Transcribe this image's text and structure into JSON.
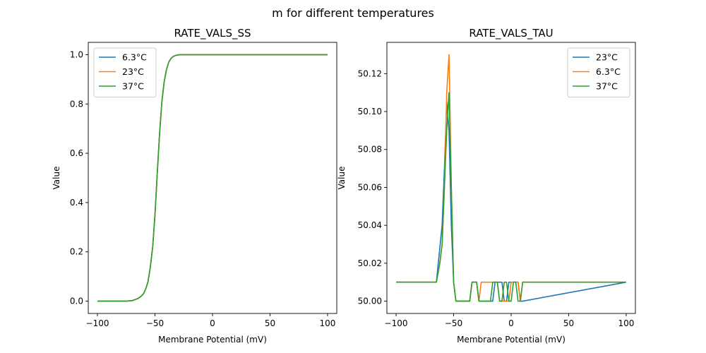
{
  "figure": {
    "title": "m for different temperatures"
  },
  "colors": {
    "blue": "#1f77b4",
    "orange": "#ff7f0e",
    "green": "#2ca02c"
  },
  "chart_data": [
    {
      "type": "line",
      "title": "RATE_VALS_SS",
      "xlabel": "Membrane Potential (mV)",
      "ylabel": "Value",
      "xlim": [
        -108,
        108
      ],
      "ylim": [
        -0.05,
        1.05
      ],
      "xticks": [
        -100,
        -50,
        0,
        50,
        100
      ],
      "yticks": [
        0.0,
        0.2,
        0.4,
        0.6,
        0.8,
        1.0
      ],
      "xtick_labels": [
        "−100",
        "−50",
        "0",
        "50",
        "100"
      ],
      "ytick_labels": [
        "0.0",
        "0.2",
        "0.4",
        "0.6",
        "0.8",
        "1.0"
      ],
      "grid": false,
      "legend_position": "upper-left",
      "x": [
        -100,
        -95,
        -90,
        -85,
        -80,
        -75,
        -70,
        -65,
        -62,
        -60,
        -58,
        -56,
        -54,
        -52,
        -50,
        -48,
        -46,
        -44,
        -42,
        -40,
        -38,
        -36,
        -34,
        -32,
        -30,
        -28,
        -25,
        -20,
        -15,
        -10,
        -5,
        0,
        10,
        20,
        30,
        40,
        50,
        60,
        70,
        80,
        90,
        100
      ],
      "series": [
        {
          "name": "6.3°C",
          "color": "#1f77b4",
          "values": [
            0,
            0,
            0,
            0,
            0,
            0,
            0.002,
            0.01,
            0.02,
            0.03,
            0.05,
            0.08,
            0.14,
            0.22,
            0.35,
            0.52,
            0.68,
            0.81,
            0.89,
            0.94,
            0.97,
            0.985,
            0.993,
            0.997,
            0.999,
            1,
            1,
            1,
            1,
            1,
            1,
            1,
            1,
            1,
            1,
            1,
            1,
            1,
            1,
            1,
            1,
            1
          ]
        },
        {
          "name": "23°C",
          "color": "#ff7f0e",
          "values": [
            0,
            0,
            0,
            0,
            0,
            0,
            0.002,
            0.01,
            0.02,
            0.03,
            0.05,
            0.08,
            0.14,
            0.22,
            0.35,
            0.52,
            0.68,
            0.81,
            0.89,
            0.94,
            0.97,
            0.985,
            0.993,
            0.997,
            0.999,
            1,
            1,
            1,
            1,
            1,
            1,
            1,
            1,
            1,
            1,
            1,
            1,
            1,
            1,
            1,
            1,
            1
          ]
        },
        {
          "name": "37°C",
          "color": "#2ca02c",
          "values": [
            0,
            0,
            0,
            0,
            0,
            0,
            0.002,
            0.01,
            0.02,
            0.03,
            0.05,
            0.08,
            0.14,
            0.22,
            0.35,
            0.52,
            0.68,
            0.81,
            0.89,
            0.94,
            0.97,
            0.985,
            0.993,
            0.997,
            0.999,
            1,
            1,
            1,
            1,
            1,
            1,
            1,
            1,
            1,
            1,
            1,
            1,
            1,
            1,
            1,
            1,
            1
          ]
        }
      ]
    },
    {
      "type": "line",
      "title": "RATE_VALS_TAU",
      "xlabel": "Membrane Potential (mV)",
      "ylabel": "Value",
      "xlim": [
        -108,
        108
      ],
      "ylim": [
        49.9935,
        50.1365
      ],
      "xticks": [
        -100,
        -50,
        0,
        50,
        100
      ],
      "yticks": [
        50.0,
        50.02,
        50.04,
        50.06,
        50.08,
        50.1,
        50.12
      ],
      "xtick_labels": [
        "−100",
        "−50",
        "0",
        "50",
        "100"
      ],
      "ytick_labels": [
        "50.00",
        "50.02",
        "50.04",
        "50.06",
        "50.08",
        "50.10",
        "50.12"
      ],
      "grid": false,
      "legend_position": "upper-right",
      "series": [
        {
          "name": "23°C",
          "color": "#1f77b4",
          "x": [
            -100,
            -65,
            -60,
            -58,
            -56,
            -54,
            -52,
            -50,
            -48,
            -40,
            -36,
            -34,
            -32,
            -30,
            -28,
            -26,
            -22,
            -20,
            -16,
            -14,
            -12,
            -10,
            -8,
            -6,
            -4,
            -2,
            0,
            2,
            4,
            6,
            8,
            10,
            100
          ],
          "values": [
            50.01,
            50.01,
            50.04,
            50.07,
            50.105,
            50.09,
            50.04,
            50.01,
            50.0,
            50.0,
            50.0,
            50.01,
            50.01,
            50.01,
            50.0,
            50.0,
            50.0,
            50.0,
            50.0,
            50.01,
            50.01,
            50.01,
            50.01,
            50.0,
            50.0,
            50.01,
            50.01,
            50.01,
            50.01,
            50.01,
            50.0,
            50.0,
            50.01
          ]
        },
        {
          "name": "6.3°C",
          "color": "#ff7f0e",
          "x": [
            -100,
            -65,
            -62,
            -60,
            -58,
            -56,
            -54,
            -52,
            -50,
            -48,
            -40,
            -36,
            -34,
            -32,
            -30,
            -28,
            -26,
            -20,
            -16,
            -14,
            -12,
            -10,
            -8,
            -6,
            -4,
            -2,
            0,
            2,
            4,
            6,
            8,
            10,
            100
          ],
          "values": [
            50.01,
            50.01,
            50.02,
            50.03,
            50.06,
            50.11,
            50.13,
            50.06,
            50.01,
            50.0,
            50.0,
            50.0,
            50.01,
            50.01,
            50.01,
            50.0,
            50.01,
            50.01,
            50.01,
            50.01,
            50.01,
            50.0,
            50.0,
            50.0,
            50.0,
            50.0,
            50.01,
            50.01,
            50.01,
            50.01,
            50.0,
            50.01,
            50.01
          ]
        },
        {
          "name": "37°C",
          "color": "#2ca02c",
          "x": [
            -100,
            -65,
            -62,
            -60,
            -58,
            -56,
            -54,
            -52,
            -50,
            -48,
            -40,
            -36,
            -34,
            -32,
            -30,
            -28,
            -26,
            -20,
            -18,
            -16,
            -14,
            -12,
            -10,
            -8,
            -6,
            -4,
            -2,
            0,
            2,
            4,
            6,
            8,
            10,
            100
          ],
          "values": [
            50.01,
            50.01,
            50.02,
            50.03,
            50.06,
            50.09,
            50.11,
            50.06,
            50.01,
            50.0,
            50.0,
            50.0,
            50.01,
            50.01,
            50.01,
            50.0,
            50.0,
            50.0,
            50.0,
            50.01,
            50.01,
            50.01,
            50.0,
            50.0,
            50.01,
            50.01,
            50.0,
            50.0,
            50.01,
            50.01,
            50.0,
            50.0,
            50.01,
            50.01
          ]
        }
      ]
    }
  ]
}
